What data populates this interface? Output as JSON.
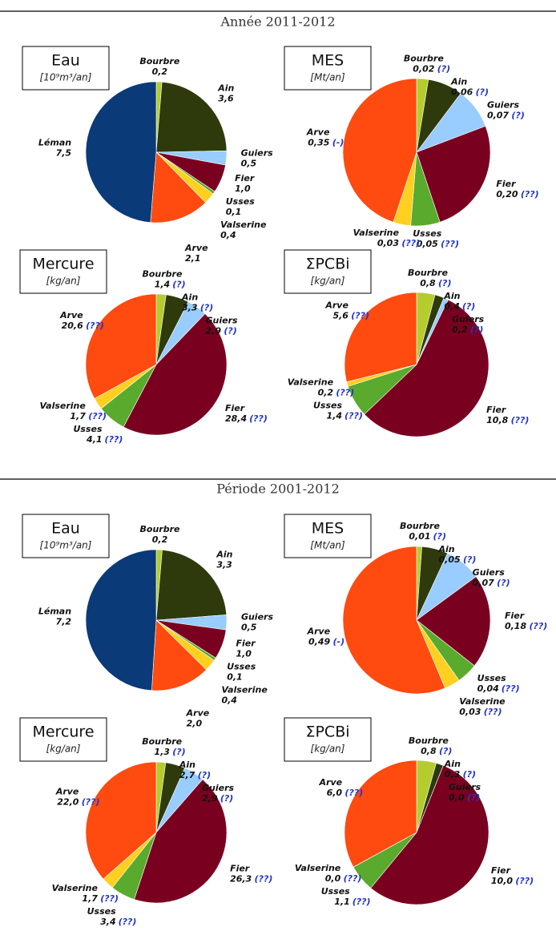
{
  "sections": [
    {
      "title": "Année 2011-2012"
    },
    {
      "title": "Période 2001-2012"
    }
  ],
  "chart_data": [
    {
      "type": "pie",
      "title": "Eau",
      "subtitle": "[10⁹m³/an]",
      "categories": [
        "Bourbre",
        "Ain",
        "Guiers",
        "Fier",
        "Usses",
        "Valserine",
        "Arve",
        "Léman"
      ],
      "values": [
        0.2,
        3.6,
        0.5,
        1.0,
        0.1,
        0.4,
        2.1,
        7.5
      ],
      "value_labels": [
        "0,2",
        "3,6",
        "0,5",
        "1,0",
        "0,1",
        "0,4",
        "2,1",
        "7,5"
      ],
      "colors": [
        "#b5cc2e",
        "#2e3a0c",
        "#99ccff",
        "#7a0020",
        "#5aaa2e",
        "#ffd020",
        "#ff4a10",
        "#0a3a78"
      ]
    },
    {
      "type": "pie",
      "title": "MES",
      "subtitle": "[Mt/an]",
      "categories": [
        "Bourbre",
        "Ain",
        "Guiers",
        "Fier",
        "Usses",
        "Valserine",
        "Arve"
      ],
      "values": [
        0.02,
        0.06,
        0.07,
        0.2,
        0.05,
        0.03,
        0.35
      ],
      "value_labels": [
        "0,02",
        "0,06",
        "0,07",
        "0,20",
        "0,05",
        "0,03",
        "0,35"
      ],
      "notes": [
        "(?)",
        "(?)",
        "(?)",
        "(??)",
        "(??)",
        "(??)",
        "(-)"
      ],
      "colors": [
        "#b5cc2e",
        "#2e3a0c",
        "#99ccff",
        "#7a0020",
        "#5aaa2e",
        "#ffd020",
        "#ff4a10"
      ]
    },
    {
      "type": "pie",
      "title": "Mercure",
      "subtitle": "[kg/an]",
      "categories": [
        "Bourbre",
        "Ain",
        "Guiers",
        "Fier",
        "Usses",
        "Valserine",
        "Arve"
      ],
      "values": [
        1.4,
        3.3,
        2.9,
        28.4,
        4.1,
        1.7,
        20.6
      ],
      "value_labels": [
        "1,4",
        "3,3",
        "2,9",
        "28,4",
        "4,1",
        "1,7",
        "20,6"
      ],
      "notes": [
        "(?)",
        "(?)",
        "(?)",
        "(??)",
        "(??)",
        "(??)",
        "(??)"
      ],
      "colors": [
        "#b5cc2e",
        "#2e3a0c",
        "#99ccff",
        "#7a0020",
        "#5aaa2e",
        "#ffd020",
        "#ff4a10"
      ]
    },
    {
      "type": "pie",
      "title": "ΣPCBi",
      "subtitle": "[kg/an]",
      "categories": [
        "Bourbre",
        "Ain",
        "Guiers",
        "Fier",
        "Usses",
        "Valserine",
        "Arve"
      ],
      "values": [
        0.8,
        0.4,
        0.2,
        10.8,
        1.4,
        0.2,
        5.6
      ],
      "value_labels": [
        "0,8",
        "0,4",
        "0,2",
        "10,8",
        "1,4",
        "0,2",
        "5,6"
      ],
      "notes": [
        "(?)",
        "(?)",
        "(?)",
        "(??)",
        "(??)",
        "(??)",
        "(??)"
      ],
      "colors": [
        "#b5cc2e",
        "#2e3a0c",
        "#99ccff",
        "#7a0020",
        "#5aaa2e",
        "#ffd020",
        "#ff4a10"
      ]
    },
    {
      "type": "pie",
      "title": "Eau",
      "subtitle": "[10⁹m³/an]",
      "categories": [
        "Bourbre",
        "Ain",
        "Guiers",
        "Fier",
        "Usses",
        "Valserine",
        "Arve",
        "Léman"
      ],
      "values": [
        0.2,
        3.3,
        0.5,
        1.0,
        0.1,
        0.4,
        2.0,
        7.2
      ],
      "value_labels": [
        "0,2",
        "3,3",
        "0,5",
        "1,0",
        "0,1",
        "0,4",
        "2,0",
        "7,2"
      ],
      "colors": [
        "#b5cc2e",
        "#2e3a0c",
        "#99ccff",
        "#7a0020",
        "#5aaa2e",
        "#ffd020",
        "#ff4a10",
        "#0a3a78"
      ]
    },
    {
      "type": "pie",
      "title": "MES",
      "subtitle": "[Mt/an]",
      "categories": [
        "Bourbre",
        "Ain",
        "Guiers",
        "Fier",
        "Usses",
        "Valserine",
        "Arve"
      ],
      "values": [
        0.01,
        0.05,
        0.07,
        0.18,
        0.04,
        0.03,
        0.49
      ],
      "value_labels": [
        "0,01",
        "0,05",
        "0,07",
        "0,18",
        "0,04",
        "0,03",
        "0,49"
      ],
      "notes": [
        "(?)",
        "(?)",
        "(?)",
        "(??)",
        "(??)",
        "(??)",
        "(-)"
      ],
      "colors": [
        "#b5cc2e",
        "#2e3a0c",
        "#99ccff",
        "#7a0020",
        "#5aaa2e",
        "#ffd020",
        "#ff4a10"
      ]
    },
    {
      "type": "pie",
      "title": "Mercure",
      "subtitle": "[kg/an]",
      "categories": [
        "Bourbre",
        "Ain",
        "Guiers",
        "Fier",
        "Usses",
        "Valserine",
        "Arve"
      ],
      "values": [
        1.3,
        2.7,
        2.9,
        26.3,
        3.4,
        1.7,
        22.0
      ],
      "value_labels": [
        "1,3",
        "2,7",
        "2,9",
        "26,3",
        "3,4",
        "1,7",
        "22,0"
      ],
      "notes": [
        "(?)",
        "(?)",
        "(?)",
        "(??)",
        "(??)",
        "(??)",
        "(??)"
      ],
      "colors": [
        "#b5cc2e",
        "#2e3a0c",
        "#99ccff",
        "#7a0020",
        "#5aaa2e",
        "#ffd020",
        "#ff4a10"
      ]
    },
    {
      "type": "pie",
      "title": "ΣPCBi",
      "subtitle": "[kg/an]",
      "categories": [
        "Bourbre",
        "Ain",
        "Guiers",
        "Fier",
        "Usses",
        "Valserine",
        "Arve"
      ],
      "values": [
        0.8,
        0.3,
        0.0,
        10.0,
        1.1,
        0.0,
        6.0
      ],
      "value_labels": [
        "0,8",
        "0,3",
        "0,0",
        "10,0",
        "1,1",
        "0,0",
        "6,0"
      ],
      "notes": [
        "(?)",
        "(?)",
        "(?)",
        "(??)",
        "(??)",
        "(??)",
        "(??)"
      ],
      "colors": [
        "#b5cc2e",
        "#2e3a0c",
        "#99ccff",
        "#7a0020",
        "#5aaa2e",
        "#ffd020",
        "#ff4a10"
      ]
    }
  ]
}
